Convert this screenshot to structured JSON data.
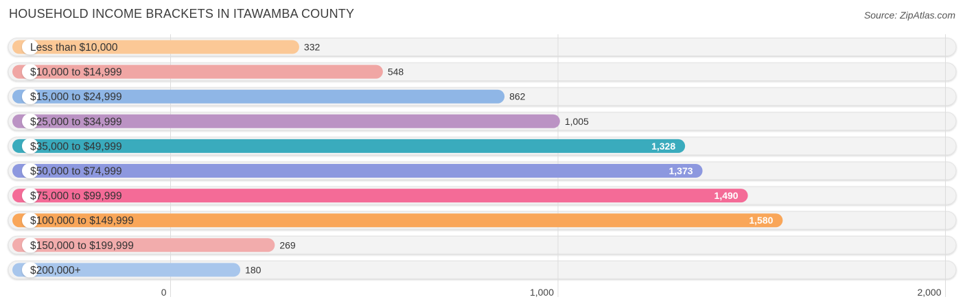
{
  "header": {
    "title": "HOUSEHOLD INCOME BRACKETS IN ITAWAMBA COUNTY",
    "source": "Source: ZipAtlas.com"
  },
  "chart_data": {
    "type": "bar",
    "orientation": "horizontal",
    "title": "HOUSEHOLD INCOME BRACKETS IN ITAWAMBA COUNTY",
    "xlabel": "",
    "ylabel": "",
    "xlim": [
      0,
      2000
    ],
    "ticks": [
      0,
      1000,
      2000
    ],
    "tick_labels": [
      "0",
      "1,000",
      "2,000"
    ],
    "grid": true,
    "categories": [
      "Less than $10,000",
      "$10,000 to $14,999",
      "$15,000 to $24,999",
      "$25,000 to $34,999",
      "$35,000 to $49,999",
      "$50,000 to $74,999",
      "$75,000 to $99,999",
      "$100,000 to $149,999",
      "$150,000 to $199,999",
      "$200,000+"
    ],
    "values": [
      332,
      548,
      862,
      1005,
      1328,
      1373,
      1490,
      1580,
      269,
      180
    ],
    "value_labels": [
      "332",
      "548",
      "862",
      "1,005",
      "1,328",
      "1,373",
      "1,490",
      "1,580",
      "269",
      "180"
    ],
    "colors": [
      "#fbc896",
      "#f0a6a4",
      "#8fb6e6",
      "#bb93c4",
      "#3aabbd",
      "#8d98df",
      "#f46b97",
      "#f9a659",
      "#f2acac",
      "#a8c6ec"
    ],
    "value_label_inside": [
      false,
      false,
      false,
      false,
      true,
      true,
      true,
      true,
      false,
      false
    ]
  }
}
